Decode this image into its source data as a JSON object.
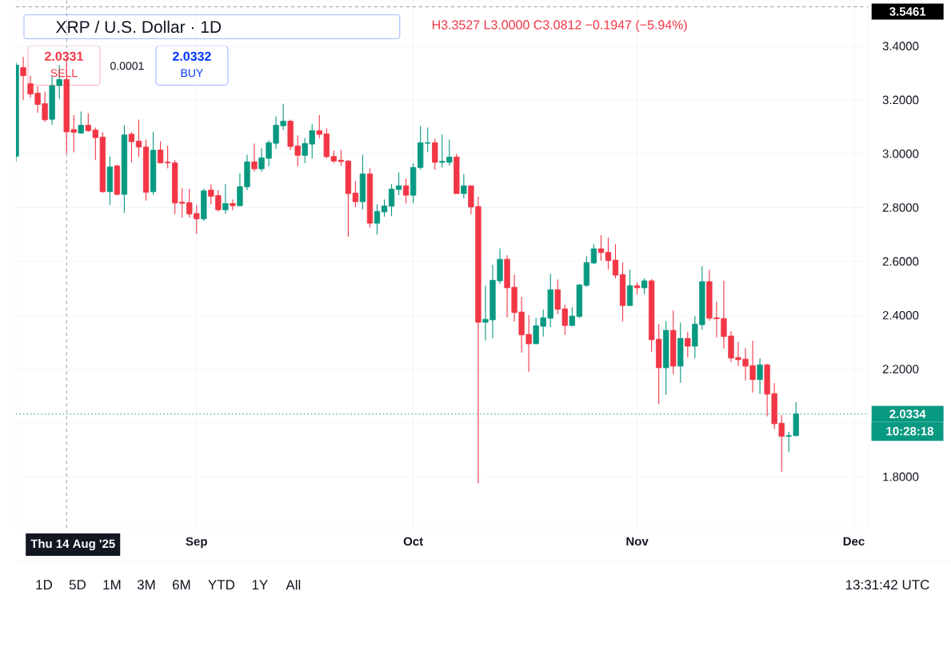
{
  "chart_data": {
    "type": "candlestick",
    "title": "XRP / U.S. Dollar · 1D",
    "x": [
      "2025-08-07",
      "2025-08-08",
      "2025-08-09",
      "2025-08-10",
      "2025-08-11",
      "2025-08-12",
      "2025-08-13",
      "2025-08-14",
      "2025-08-15",
      "2025-08-16",
      "2025-08-17",
      "2025-08-18",
      "2025-08-19",
      "2025-08-20",
      "2025-08-21",
      "2025-08-22",
      "2025-08-23",
      "2025-08-24",
      "2025-08-25",
      "2025-08-26",
      "2025-08-27",
      "2025-08-28",
      "2025-08-29",
      "2025-08-30",
      "2025-08-31",
      "2025-09-01",
      "2025-09-02",
      "2025-09-03",
      "2025-09-04",
      "2025-09-05",
      "2025-09-06",
      "2025-09-07",
      "2025-09-08",
      "2025-09-09",
      "2025-09-10",
      "2025-09-11",
      "2025-09-12",
      "2025-09-13",
      "2025-09-14",
      "2025-09-15",
      "2025-09-16",
      "2025-09-17",
      "2025-09-18",
      "2025-09-19",
      "2025-09-20",
      "2025-09-21",
      "2025-09-22",
      "2025-09-23",
      "2025-09-24",
      "2025-09-25",
      "2025-09-26",
      "2025-09-27",
      "2025-09-28",
      "2025-09-29",
      "2025-09-30",
      "2025-10-01",
      "2025-10-02",
      "2025-10-03",
      "2025-10-04",
      "2025-10-05",
      "2025-10-06",
      "2025-10-07",
      "2025-10-08",
      "2025-10-09",
      "2025-10-10",
      "2025-10-11",
      "2025-10-12",
      "2025-10-13",
      "2025-10-14",
      "2025-10-15",
      "2025-10-16",
      "2025-10-17",
      "2025-10-18",
      "2025-10-19",
      "2025-10-20",
      "2025-10-21",
      "2025-10-22",
      "2025-10-23",
      "2025-10-24",
      "2025-10-25",
      "2025-10-26",
      "2025-10-27",
      "2025-10-28",
      "2025-10-29",
      "2025-10-30",
      "2025-10-31",
      "2025-11-01",
      "2025-11-02",
      "2025-11-03",
      "2025-11-04",
      "2025-11-05",
      "2025-11-06",
      "2025-11-07",
      "2025-11-08",
      "2025-11-09",
      "2025-11-10",
      "2025-11-11",
      "2025-11-12",
      "2025-11-13",
      "2025-11-14",
      "2025-11-15",
      "2025-11-16",
      "2025-11-17",
      "2025-11-18",
      "2025-11-19",
      "2025-11-20",
      "2025-11-21",
      "2025-11-22",
      "2025-11-23"
    ],
    "ohlc": [
      [
        2.99,
        3.34,
        2.97,
        3.33
      ],
      [
        3.32,
        3.36,
        3.2,
        3.29
      ],
      [
        3.26,
        3.29,
        3.208,
        3.222
      ],
      [
        3.225,
        3.25,
        3.152,
        3.183
      ],
      [
        3.186,
        3.23,
        3.119,
        3.126
      ],
      [
        3.128,
        3.29,
        3.107,
        3.253
      ],
      [
        3.253,
        3.33,
        3.204,
        3.2759
      ],
      [
        3.2759,
        3.3527,
        3.0,
        3.0812
      ],
      [
        3.09,
        3.144,
        3.005,
        3.08
      ],
      [
        3.077,
        3.157,
        3.074,
        3.106
      ],
      [
        3.106,
        3.151,
        3.08,
        3.086
      ],
      [
        3.088,
        3.097,
        2.976,
        3.06
      ],
      [
        3.062,
        3.08,
        2.855,
        2.859
      ],
      [
        2.859,
        2.99,
        2.81,
        2.951
      ],
      [
        2.955,
        2.96,
        2.846,
        2.849
      ],
      [
        2.849,
        3.106,
        2.78,
        3.07
      ],
      [
        3.073,
        3.08,
        2.968,
        3.045
      ],
      [
        3.047,
        3.127,
        2.988,
        3.025
      ],
      [
        3.025,
        3.053,
        2.826,
        2.857
      ],
      [
        2.859,
        3.082,
        2.847,
        3.013
      ],
      [
        3.014,
        3.047,
        2.964,
        2.966
      ],
      [
        2.969,
        3.03,
        2.946,
        2.966
      ],
      [
        2.966,
        2.976,
        2.776,
        2.817
      ],
      [
        2.82,
        2.872,
        2.763,
        2.816
      ],
      [
        2.818,
        2.87,
        2.763,
        2.776
      ],
      [
        2.778,
        2.81,
        2.702,
        2.758
      ],
      [
        2.758,
        2.87,
        2.75,
        2.862
      ],
      [
        2.865,
        2.887,
        2.812,
        2.842
      ],
      [
        2.845,
        2.865,
        2.785,
        2.792
      ],
      [
        2.792,
        2.887,
        2.778,
        2.815
      ],
      [
        2.815,
        2.83,
        2.79,
        2.807
      ],
      [
        2.807,
        2.928,
        2.805,
        2.878
      ],
      [
        2.877,
        2.996,
        2.865,
        2.97
      ],
      [
        2.97,
        3.038,
        2.934,
        2.944
      ],
      [
        2.944,
        3.02,
        2.934,
        2.985
      ],
      [
        2.983,
        3.05,
        2.953,
        3.041
      ],
      [
        3.039,
        3.139,
        3.018,
        3.106
      ],
      [
        3.104,
        3.186,
        3.089,
        3.121
      ],
      [
        3.121,
        3.127,
        3.013,
        3.027
      ],
      [
        3.029,
        3.068,
        2.953,
        2.994
      ],
      [
        2.994,
        3.059,
        2.965,
        3.038
      ],
      [
        3.036,
        3.109,
        2.983,
        3.086
      ],
      [
        3.086,
        3.143,
        3.057,
        3.072
      ],
      [
        3.074,
        3.094,
        2.983,
        2.989
      ],
      [
        2.99,
        3.012,
        2.966,
        2.973
      ],
      [
        2.976,
        3.015,
        2.955,
        2.971
      ],
      [
        2.973,
        2.976,
        2.692,
        2.852
      ],
      [
        2.854,
        2.898,
        2.802,
        2.822
      ],
      [
        2.822,
        2.996,
        2.793,
        2.925
      ],
      [
        2.925,
        2.946,
        2.726,
        2.742
      ],
      [
        2.742,
        2.812,
        2.7,
        2.786
      ],
      [
        2.784,
        2.83,
        2.766,
        2.806
      ],
      [
        2.805,
        2.887,
        2.768,
        2.869
      ],
      [
        2.867,
        2.931,
        2.846,
        2.881
      ],
      [
        2.881,
        2.907,
        2.816,
        2.846
      ],
      [
        2.846,
        2.964,
        2.816,
        2.949
      ],
      [
        2.949,
        3.103,
        2.941,
        3.041
      ],
      [
        3.039,
        3.097,
        3.006,
        3.041
      ],
      [
        3.041,
        3.056,
        2.941,
        2.968
      ],
      [
        2.968,
        3.071,
        2.949,
        2.972
      ],
      [
        2.968,
        3.053,
        2.956,
        2.988
      ],
      [
        2.988,
        3.0,
        2.852,
        2.852
      ],
      [
        2.852,
        2.925,
        2.834,
        2.881
      ],
      [
        2.881,
        2.882,
        2.775,
        2.802
      ],
      [
        2.804,
        2.84,
        1.777,
        2.374
      ],
      [
        2.374,
        2.51,
        2.306,
        2.385
      ],
      [
        2.383,
        2.587,
        2.315,
        2.53
      ],
      [
        2.528,
        2.649,
        2.517,
        2.608
      ],
      [
        2.608,
        2.623,
        2.392,
        2.502
      ],
      [
        2.504,
        2.551,
        2.377,
        2.41
      ],
      [
        2.412,
        2.468,
        2.261,
        2.327
      ],
      [
        2.329,
        2.4,
        2.19,
        2.294
      ],
      [
        2.294,
        2.39,
        2.293,
        2.361
      ],
      [
        2.359,
        2.421,
        2.321,
        2.391
      ],
      [
        2.389,
        2.554,
        2.356,
        2.495
      ],
      [
        2.495,
        2.533,
        2.404,
        2.422
      ],
      [
        2.424,
        2.439,
        2.327,
        2.362
      ],
      [
        2.362,
        2.43,
        2.36,
        2.397
      ],
      [
        2.395,
        2.516,
        2.39,
        2.513
      ],
      [
        2.511,
        2.62,
        2.505,
        2.596
      ],
      [
        2.594,
        2.664,
        2.59,
        2.647
      ],
      [
        2.647,
        2.697,
        2.603,
        2.633
      ],
      [
        2.634,
        2.688,
        2.57,
        2.603
      ],
      [
        2.605,
        2.664,
        2.537,
        2.549
      ],
      [
        2.551,
        2.596,
        2.377,
        2.436
      ],
      [
        2.436,
        2.569,
        2.435,
        2.51
      ],
      [
        2.51,
        2.522,
        2.478,
        2.502
      ],
      [
        2.502,
        2.537,
        2.478,
        2.528
      ],
      [
        2.528,
        2.534,
        2.265,
        2.309
      ],
      [
        2.311,
        2.367,
        2.069,
        2.205
      ],
      [
        2.205,
        2.379,
        2.104,
        2.344
      ],
      [
        2.344,
        2.418,
        2.181,
        2.211
      ],
      [
        2.211,
        2.373,
        2.149,
        2.314
      ],
      [
        2.314,
        2.338,
        2.244,
        2.285
      ],
      [
        2.285,
        2.397,
        2.241,
        2.367
      ],
      [
        2.365,
        2.582,
        2.347,
        2.525
      ],
      [
        2.525,
        2.569,
        2.38,
        2.389
      ],
      [
        2.391,
        2.45,
        2.318,
        2.387
      ],
      [
        2.388,
        2.528,
        2.276,
        2.321
      ],
      [
        2.323,
        2.341,
        2.226,
        2.241
      ],
      [
        2.243,
        2.302,
        2.211,
        2.235
      ],
      [
        2.237,
        2.278,
        2.158,
        2.211
      ],
      [
        2.213,
        2.305,
        2.113,
        2.161
      ],
      [
        2.161,
        2.24,
        2.107,
        2.216
      ],
      [
        2.216,
        2.22,
        2.024,
        2.107
      ],
      [
        2.109,
        2.148,
        1.977,
        1.997
      ],
      [
        1.999,
        2.029,
        1.819,
        1.95
      ],
      [
        1.95,
        1.967,
        1.891,
        1.953
      ],
      [
        1.953,
        2.077,
        1.95,
        2.0334
      ]
    ],
    "colors": [
      "#089981",
      "#f23645",
      "#f23645",
      "#f23645",
      "#f23645",
      "#089981",
      "#089981",
      "#f23645",
      "#f23645",
      "#089981",
      "#f23645",
      "#f23645",
      "#f23645",
      "#089981",
      "#f23645",
      "#089981",
      "#f23645",
      "#f23645",
      "#f23645",
      "#089981",
      "#f23645",
      "#f23645",
      "#f23645",
      "#f23645",
      "#f23645",
      "#f23645",
      "#089981",
      "#f23645",
      "#f23645",
      "#089981",
      "#f23645",
      "#089981",
      "#089981",
      "#f23645",
      "#089981",
      "#089981",
      "#089981",
      "#089981",
      "#f23645",
      "#f23645",
      "#089981",
      "#089981",
      "#f23645",
      "#f23645",
      "#f23645",
      "#f23645",
      "#f23645",
      "#f23645",
      "#089981",
      "#f23645",
      "#089981",
      "#089981",
      "#089981",
      "#089981",
      "#f23645",
      "#089981",
      "#089981",
      "#089981",
      "#f23645",
      "#089981",
      "#089981",
      "#f23645",
      "#089981",
      "#f23645",
      "#f23645",
      "#089981",
      "#089981",
      "#089981",
      "#f23645",
      "#f23645",
      "#f23645",
      "#f23645",
      "#089981",
      "#089981",
      "#089981",
      "#f23645",
      "#f23645",
      "#089981",
      "#089981",
      "#089981",
      "#089981",
      "#f23645",
      "#f23645",
      "#f23645",
      "#f23645",
      "#089981",
      "#f23645",
      "#089981",
      "#f23645",
      "#f23645",
      "#089981",
      "#f23645",
      "#089981",
      "#f23645",
      "#089981",
      "#089981",
      "#f23645",
      "#f23645",
      "#f23645",
      "#f23645",
      "#f23645",
      "#f23645",
      "#f23645",
      "#089981",
      "#f23645",
      "#f23645",
      "#f23645",
      "#089981",
      "#089981"
    ],
    "xlim": [
      "2025-08-07",
      "2025-12-03"
    ],
    "xticks": [
      {
        "value": "2025-09-01",
        "label": "Sep"
      },
      {
        "value": "2025-10-01",
        "label": "Oct"
      },
      {
        "value": "2025-11-01",
        "label": "Nov"
      },
      {
        "value": "2025-12-01",
        "label": "Dec"
      }
    ],
    "ylim": [
      1.61,
      3.57
    ],
    "yticks": [
      {
        "value": 1.8,
        "label": "1.8000"
      },
      {
        "value": 2.0,
        "label": null
      },
      {
        "value": 2.2,
        "label": "2.2000"
      },
      {
        "value": 2.4,
        "label": "2.4000"
      },
      {
        "value": 2.6,
        "label": "2.6000"
      },
      {
        "value": 2.8,
        "label": "2.8000"
      },
      {
        "value": 3.0,
        "label": "3.0000"
      },
      {
        "value": 3.2,
        "label": "3.2000"
      },
      {
        "value": 3.4,
        "label": "3.4000"
      }
    ],
    "grid": true,
    "ref_lines": [
      {
        "axis": "y",
        "value": 2.0334,
        "label": "2.0334",
        "color": "#089981",
        "line_style": "dotted"
      },
      {
        "axis": "x",
        "value": "2025-08-14",
        "label": "Thu 14 Aug '25",
        "color": "#9598a1",
        "line_style": "dashed"
      },
      {
        "axis": "y",
        "value": 3.5461,
        "label": "3.5461",
        "color": "#9598a1",
        "line_style": "dashed"
      }
    ],
    "annotations": [
      "H3.3527 L3.0000 C3.0812 −0.1947 (−5.94%)",
      "2.0331",
      "SELL",
      "0.0001",
      "2.0332",
      "BUY",
      "10:28:18",
      "1D",
      "5D",
      "1M",
      "3M",
      "6M",
      "YTD",
      "1Y",
      "All",
      "13:31:42 UTC"
    ]
  }
}
